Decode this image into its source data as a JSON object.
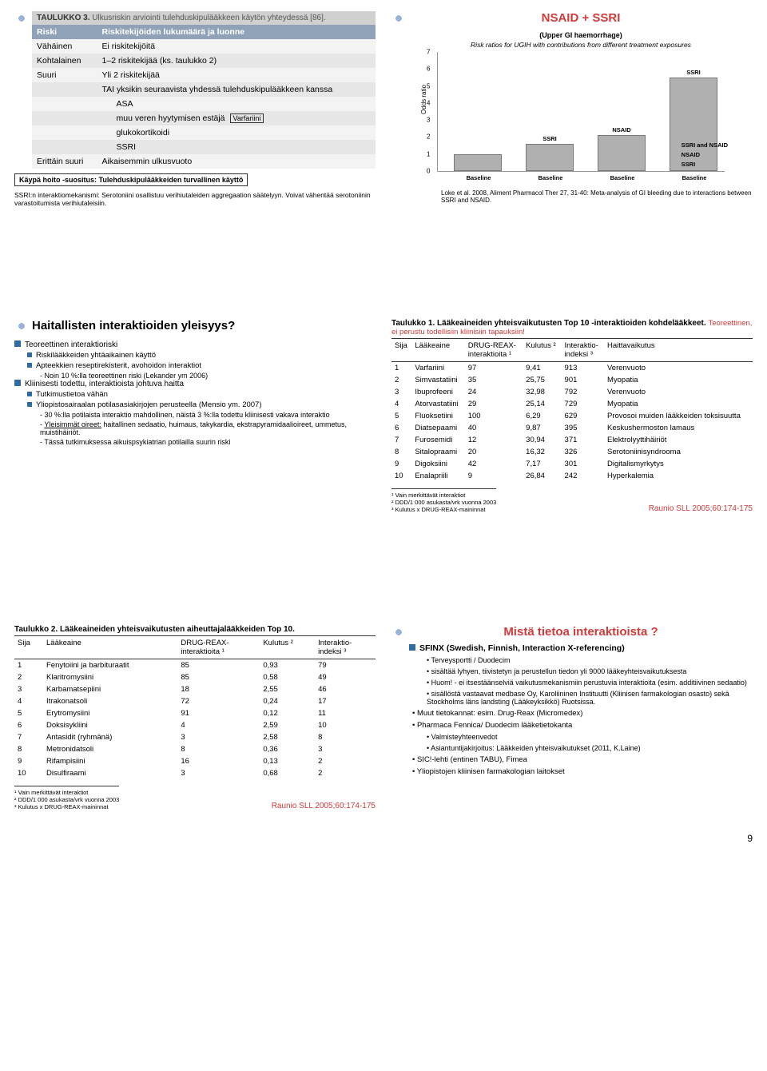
{
  "panel1": {
    "title_bold": "TAULUKKO 3.",
    "title_rest": "Ulkusriskin arviointi tulehduskipulääkkeen käytön yhteydessä [86].",
    "headers": [
      "Riski",
      "Riskitekijöiden lukumäärä ja luonne"
    ],
    "rows": [
      {
        "c1": "Vähäinen",
        "c2": "Ei riskitekijöitä"
      },
      {
        "c1": "Kohtalainen",
        "c2": "1–2 riskitekijää (ks. taulukko 2)"
      },
      {
        "c1": "Suuri",
        "c2": "Yli 2 riskitekijää"
      },
      {
        "c1": "",
        "c2": "TAI yksikin seuraavista yhdessä tulehduskipulääkkeen kanssa"
      },
      {
        "c1": "",
        "c2": "ASA",
        "sub": true
      },
      {
        "c1": "",
        "c2": "muu veren hyytymisen estäjä",
        "sub": true,
        "box": "Varfariini"
      },
      {
        "c1": "",
        "c2": "glukokortikoidi",
        "sub": true
      },
      {
        "c1": "",
        "c2": "SSRI",
        "sub": true
      },
      {
        "c1": "Erittäin suuri",
        "c2": "Aikaisemmin ulkusvuoto"
      }
    ],
    "footer_box": "Käypä hoito -suositus: Tulehduskipulääkkeiden turvallinen käyttö",
    "note": "SSRI:n interaktiomekanismi: Serotoniini osallistuu verihiutaleiden aggregaation säätelyyn. Voivat vähentää serotoniinin varastoitumista verihiutaleisiin."
  },
  "panel2": {
    "title": "NSAID + SSRI",
    "sub": "(Upper GI haemorrhage)",
    "sub2": "Risk ratios for UGIH with contributions from different treatment exposures",
    "ylabel": "Odds ratio",
    "ylim": [
      0,
      7
    ],
    "bars": [
      {
        "x": 20,
        "h": 1,
        "label": "Baseline",
        "top": ""
      },
      {
        "x": 110,
        "h": 1.6,
        "label": "Baseline",
        "top": "SSRI"
      },
      {
        "x": 200,
        "h": 2.1,
        "label": "Baseline",
        "top": "NSAID"
      },
      {
        "x": 290,
        "h": 5.5,
        "label": "Baseline",
        "top": "SSRI",
        "stack": [
          {
            "h": 1,
            "c": "#c0c0c0"
          },
          {
            "h": 1.6,
            "c": "#a8a8a8"
          },
          {
            "h": 2.1,
            "c": "#909090"
          },
          {
            "h": 0.8,
            "c": "#787878"
          }
        ],
        "side": "SSRI and NSAID"
      }
    ],
    "side_labels": [
      "SSRI and NSAID",
      "NSAID",
      "SSRI"
    ],
    "cite": "Loke et al. 2008, Aliment Pharmacol Ther 27, 31-40: Meta-analysis of GI bleeding due to interactions between SSRI and NSAID."
  },
  "panel3": {
    "title": "Haitallisten interaktioiden yleisyys?",
    "items": [
      {
        "t": "Teoreettinen interaktioriski",
        "lvl": 0
      },
      {
        "t": "Riskilääkkeiden yhtäaikainen käyttö",
        "lvl": 1
      },
      {
        "t": "Apteekkien reseptirekisterit, avohoidon interaktiot",
        "lvl": 1
      },
      {
        "t": "Noin 10 %:lla teoreettinen riski (Lekander ym 2006)",
        "lvl": 2,
        "dash": true
      },
      {
        "t": "Kliinisesti todettu, interaktioista johtuva haitta",
        "lvl": 0
      },
      {
        "t": "Tutkimustietoa vähän",
        "lvl": 1
      },
      {
        "t": "Yliopistosairaalan potilasasiakirjojen perusteella (Mensio ym. 2007)",
        "lvl": 1
      },
      {
        "t": "30 %:lla potilaista interaktio mahdollinen, näistä 3 %:lla todettu kliinisesti vakava interaktio",
        "lvl": 2,
        "dash": true
      },
      {
        "t": "Yleisimmät oireet: haitallinen sedaatio, huimaus, takykardia, ekstrapyramidaalioireet, ummetus, muistihäiriöt.",
        "lvl": 2,
        "dash": true,
        "u": "Yleisimmät oireet:"
      },
      {
        "t": "Tässä tutkimuksessa aikuispsykiatrian potilailla suurin riski",
        "lvl": 2,
        "dash": true
      }
    ]
  },
  "panel4": {
    "title_a": "Taulukko 1. Lääkeaineiden yhteisvaikutusten Top 10 -interaktioiden kohdelääkkeet.",
    "title_red": "Teoreettinen, ei perustu todellisiin kliinisiin tapauksiin!",
    "headers": [
      "Sija",
      "Lääkeaine",
      "DRUG-REAX-\ninteraktioita ¹",
      "Kulutus ²",
      "Interaktio-\nindeksi ³",
      "Haittavaikutus"
    ],
    "rows": [
      [
        "1",
        "Varfariini",
        "97",
        "9,41",
        "913",
        "Verenvuoto"
      ],
      [
        "2",
        "Simvastatiini",
        "35",
        "25,75",
        "901",
        "Myopatia"
      ],
      [
        "3",
        "Ibuprofeeni",
        "24",
        "32,98",
        "792",
        "Verenvuoto"
      ],
      [
        "4",
        "Atorvastatiini",
        "29",
        "25,14",
        "729",
        "Myopatia"
      ],
      [
        "5",
        "Fluoksetiini",
        "100",
        "6,29",
        "629",
        "Provosoi muiden lääkkeiden toksisuutta"
      ],
      [
        "6",
        "Diatsepaami",
        "40",
        "9,87",
        "395",
        "Keskushermoston lamaus"
      ],
      [
        "7",
        "Furosemidi",
        "12",
        "30,94",
        "371",
        "Elektrolyyttihäiriöt"
      ],
      [
        "8",
        "Sitalopraami",
        "20",
        "16,32",
        "326",
        "Serotoniinisyndrooma"
      ],
      [
        "9",
        "Digoksiini",
        "42",
        "7,17",
        "301",
        "Digitalismyrkytys"
      ],
      [
        "10",
        "Enalapriili",
        "9",
        "26,84",
        "242",
        "Hyperkalemia"
      ]
    ],
    "footnotes": "¹ Vain merkittävät interaktiot\n² DDD/1 000 asukasta/vrk vuonna 2003\n³ Kulutus x DRUG-REAX-maininnat",
    "ref": "Raunio SLL 2005;60:174-175"
  },
  "panel5": {
    "title": "Taulukko 2. Lääkeaineiden yhteisvaikutusten aiheuttajalääkkeiden Top 10.",
    "headers": [
      "Sija",
      "Lääkeaine",
      "DRUG-REAX-\ninteraktioita ¹",
      "Kulutus ²",
      "Interaktio-\nindeksi ³"
    ],
    "rows": [
      [
        "1",
        "Fenytoiini ja barbituraatit",
        "85",
        "0,93",
        "79"
      ],
      [
        "2",
        "Klaritromysiini",
        "85",
        "0,58",
        "49"
      ],
      [
        "3",
        "Karbamatsepiini",
        "18",
        "2,55",
        "46"
      ],
      [
        "4",
        "Itrakonatsoli",
        "72",
        "0,24",
        "17"
      ],
      [
        "5",
        "Erytromysiini",
        "91",
        "0,12",
        "11"
      ],
      [
        "6",
        "Doksisykliini",
        "4",
        "2,59",
        "10"
      ],
      [
        "7",
        "Antasidit (ryhmänä)",
        "3",
        "2,58",
        "8"
      ],
      [
        "8",
        "Metronidatsoli",
        "8",
        "0,36",
        "3"
      ],
      [
        "9",
        "Rifampisiini",
        "16",
        "0,13",
        "2"
      ],
      [
        "10",
        "Disulfiraami",
        "3",
        "0,68",
        "2"
      ]
    ],
    "footnotes": "¹ Vain merkittävät interaktiot\n² DDD/1 000 asukasta/vrk vuonna 2003\n³ Kulutus x DRUG-REAX-maininnat",
    "ref": "Raunio SLL 2005;60:174-175"
  },
  "panel6": {
    "title": "Mistä tietoa interaktioista ?",
    "lead": "SFINX (Swedish, Finnish, Interaction X-referencing)",
    "items": [
      {
        "t": "Terveysportti / Duodecim",
        "lvl": 1
      },
      {
        "t": "sisältää lyhyen, tiivistetyn ja perustellun tiedon yli 9000 lääkeyhteisvaikutuksesta",
        "lvl": 1
      },
      {
        "t": "Huom! - ei itsestäänselviä vaikutusmekanismiin perustuvia interaktioita (esim. additiivinen sedaatio)",
        "lvl": 1
      },
      {
        "t": "sisällöstä vastaavat medbase Oy, Karoliininen Instituutti (Kliinisen farmakologian osasto) sekä Stockholms läns landsting (Lääkeyksikkö) Ruotsissa.",
        "lvl": 1
      },
      {
        "t": "Muut tietokannat: esim. Drug-Reax (Micromedex)",
        "lvl": 0
      },
      {
        "t": "Pharmaca Fennica/ Duodecim lääketietokanta",
        "lvl": 0
      },
      {
        "t": "Valmisteyhteenvedot",
        "lvl": 1
      },
      {
        "t": "Asiantuntijakirjoitus: Lääkkeiden yhteisvaikutukset (2011, K.Laine)",
        "lvl": 1
      },
      {
        "t": "SIC!-lehti (entinen TABU), Fimea",
        "lvl": 0
      },
      {
        "t": "Yliopistojen kliinisen farmakologian laitokset",
        "lvl": 0
      }
    ]
  },
  "page_number": "9"
}
